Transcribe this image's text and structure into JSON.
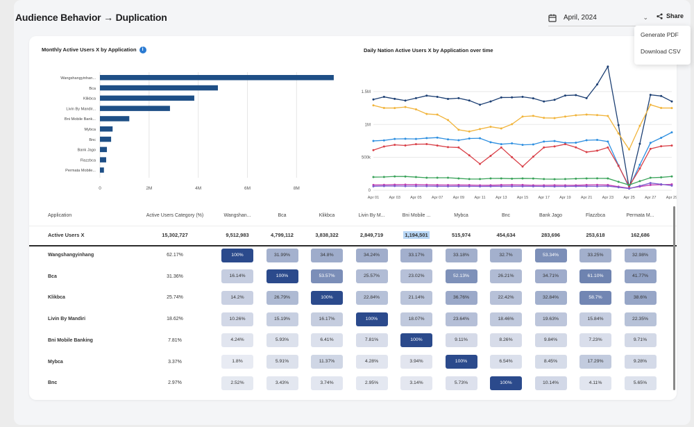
{
  "header": {
    "title": "Audience Behavior → Duplication",
    "date_value": "April, 2024",
    "share_label": "Share"
  },
  "share_menu": {
    "items": [
      "Generate PDF",
      "Download CSV"
    ]
  },
  "bar_chart": {
    "title": "Monthly Active Users X by Application",
    "chart_data": {
      "type": "bar",
      "orientation": "horizontal",
      "categories": [
        "Wangshangyinhan...",
        "Bca",
        "Klikbca",
        "Livin By Mandir...",
        "Bni Mobile Bank...",
        "Mybca",
        "Bnc",
        "Bank Jago",
        "Flazzbca",
        "Permata Mobile..."
      ],
      "values": [
        9512983,
        4799112,
        3838322,
        2849719,
        1194501,
        515974,
        454634,
        283696,
        253618,
        162686
      ],
      "xticks": [
        "0",
        "2M",
        "4M",
        "6M",
        "8M"
      ],
      "xlim": [
        0,
        9600000
      ]
    }
  },
  "line_chart": {
    "title": "Daily Nation Active Users X by Application over time",
    "chart_data": {
      "type": "line",
      "x": [
        "Apr 01",
        "Apr 03",
        "Apr 05",
        "Apr 07",
        "Apr 09",
        "Apr 11",
        "Apr 13",
        "Apr 15",
        "Apr 17",
        "Apr 19",
        "Apr 21",
        "Apr 23",
        "Apr 25",
        "Apr 27",
        "Apr 29"
      ],
      "yticks": [
        "0",
        "500k",
        "1M",
        "1.5M"
      ],
      "ylim": [
        0,
        1900000
      ],
      "series": [
        {
          "name": "Wangshangyinhang",
          "color": "#1c3f73",
          "values": [
            1380000,
            1390000,
            1400000,
            1420000,
            1400000,
            1300000,
            1410000,
            1420000,
            1350000,
            1440000,
            1400000,
            1880000,
            30000,
            1450000,
            1350000
          ]
        },
        {
          "name": "Bca",
          "color": "#f1b43b",
          "values": [
            1290000,
            1250000,
            1230000,
            1150000,
            920000,
            930000,
            940000,
            1120000,
            1100000,
            1120000,
            1150000,
            1130000,
            620000,
            1300000,
            1250000
          ]
        },
        {
          "name": "Livin By Mandiri",
          "color": "#2e8fe0",
          "values": [
            750000,
            780000,
            780000,
            800000,
            760000,
            790000,
            700000,
            690000,
            740000,
            720000,
            760000,
            740000,
            40000,
            720000,
            880000
          ]
        },
        {
          "name": "Klikbca",
          "color": "#d94048",
          "values": [
            610000,
            690000,
            700000,
            680000,
            650000,
            400000,
            650000,
            360000,
            650000,
            700000,
            580000,
            650000,
            60000,
            630000,
            680000
          ]
        },
        {
          "name": "Bni Mobile Banking",
          "color": "#3aa35a",
          "values": [
            200000,
            210000,
            200000,
            190000,
            180000,
            170000,
            180000,
            180000,
            170000,
            170000,
            180000,
            180000,
            80000,
            190000,
            210000
          ]
        },
        {
          "name": "Mybca",
          "color": "#c03ab0",
          "values": [
            80000,
            85000,
            85000,
            80000,
            80000,
            75000,
            80000,
            80000,
            75000,
            75000,
            80000,
            80000,
            30000,
            80000,
            90000
          ]
        },
        {
          "name": "Bnc",
          "color": "#7a5ccd",
          "values": [
            60000,
            65000,
            62000,
            60000,
            60000,
            58000,
            60000,
            60000,
            58000,
            58000,
            60000,
            62000,
            25000,
            110000,
            70000
          ]
        }
      ]
    }
  },
  "table": {
    "header": {
      "app": "Application",
      "category": "Active Users Category (%)",
      "cols": [
        "Wangshan...",
        "Bca",
        "Klikbca",
        "Livin By M...",
        "Bni Mobile ...",
        "Mybca",
        "Bnc",
        "Bank Jago",
        "Flazzbca",
        "Permata M..."
      ]
    },
    "total": {
      "app": "Active Users X",
      "category": "15,302,727",
      "cols": [
        "9,512,983",
        "4,799,112",
        "3,838,322",
        "2,849,719",
        "1,194,501",
        "515,974",
        "454,634",
        "283,696",
        "253,618",
        "162,686"
      ]
    },
    "rows": [
      {
        "app": "Wangshangyinhang",
        "category": "62.17%",
        "cells": [
          "100%",
          "31.99%",
          "34.8%",
          "34.24%",
          "33.17%",
          "33.18%",
          "32.7%",
          "53.34%",
          "33.25%",
          "32.98%"
        ]
      },
      {
        "app": "Bca",
        "category": "31.36%",
        "cells": [
          "16.14%",
          "100%",
          "53.57%",
          "25.57%",
          "23.02%",
          "52.13%",
          "26.21%",
          "34.71%",
          "61.10%",
          "41.77%"
        ]
      },
      {
        "app": "Klikbca",
        "category": "25.74%",
        "cells": [
          "14.2%",
          "26.79%",
          "100%",
          "22.84%",
          "21.14%",
          "36.76%",
          "22.42%",
          "32.84%",
          "58.7%",
          "38.6%"
        ]
      },
      {
        "app": "Livin By Mandiri",
        "category": "18.62%",
        "cells": [
          "10.26%",
          "15.19%",
          "16.17%",
          "100%",
          "18.07%",
          "23.64%",
          "18.46%",
          "19.63%",
          "15.84%",
          "22.35%"
        ]
      },
      {
        "app": "Bni Mobile Banking",
        "category": "7.81%",
        "cells": [
          "4.24%",
          "5.93%",
          "6.41%",
          "7.81%",
          "100%",
          "9.11%",
          "8.26%",
          "9.84%",
          "7.23%",
          "9.71%"
        ]
      },
      {
        "app": "Mybca",
        "category": "3.37%",
        "cells": [
          "1.8%",
          "5.91%",
          "11.37%",
          "4.28%",
          "3.94%",
          "100%",
          "6.54%",
          "8.45%",
          "17.29%",
          "9.28%"
        ]
      },
      {
        "app": "Bnc",
        "category": "2.97%",
        "cells": [
          "2.52%",
          "3.43%",
          "3.74%",
          "2.95%",
          "3.14%",
          "5.73%",
          "100%",
          "10.14%",
          "4.11%",
          "5.65%"
        ]
      }
    ]
  },
  "colors": {
    "bar": "#1e4f86",
    "heat_full": "#2b4a8c",
    "heat_text_light": "#ffffff",
    "heat_text_dark": "#333333"
  }
}
